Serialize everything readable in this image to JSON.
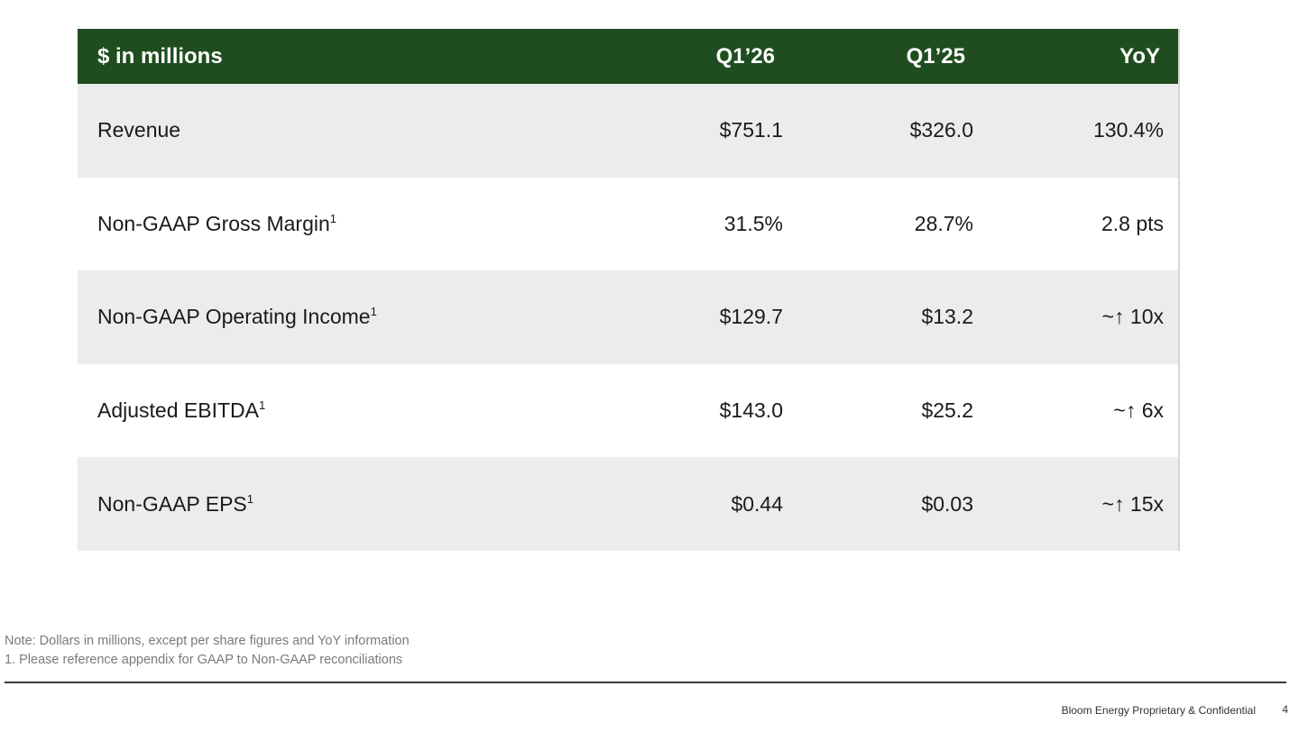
{
  "table": {
    "header": {
      "metric": "$ in millions",
      "q126": "Q1’26",
      "q125": "Q1’25",
      "yoy": "YoY"
    },
    "rows": [
      {
        "metric": "Revenue",
        "footnote": "",
        "q126": "$751.1",
        "q125": "$326.0",
        "yoy": "130.4%"
      },
      {
        "metric": "Non-GAAP Gross Margin",
        "footnote": "1",
        "q126": "31.5%",
        "q125": "28.7%",
        "yoy": "2.8 pts"
      },
      {
        "metric": "Non-GAAP Operating Income",
        "footnote": "1",
        "q126": "$129.7",
        "q125": "$13.2",
        "yoy_prefix": "~",
        "yoy_arrow": "↑",
        "yoy_value": " 10x"
      },
      {
        "metric": "Adjusted EBITDA",
        "footnote": "1",
        "q126": "$143.0",
        "q125": "$25.2",
        "yoy_prefix": "~",
        "yoy_arrow": "↑",
        "yoy_value": " 6x"
      },
      {
        "metric": "Non-GAAP EPS",
        "footnote": "1",
        "q126": "$0.44",
        "q125": "$0.03",
        "yoy_prefix": "~",
        "yoy_arrow": "↑",
        "yoy_value": " 15x"
      }
    ]
  },
  "notes": {
    "line1": "Note: Dollars in millions, except per share figures and YoY information",
    "line2": "1.  Please reference appendix for GAAP to Non-GAAP reconciliations"
  },
  "footer": {
    "confidential": "Bloom Energy Proprietary & Confidential",
    "page_number": "4"
  },
  "colors": {
    "header_bg": "#1f4d1f",
    "shaded_row": "#ececec"
  }
}
